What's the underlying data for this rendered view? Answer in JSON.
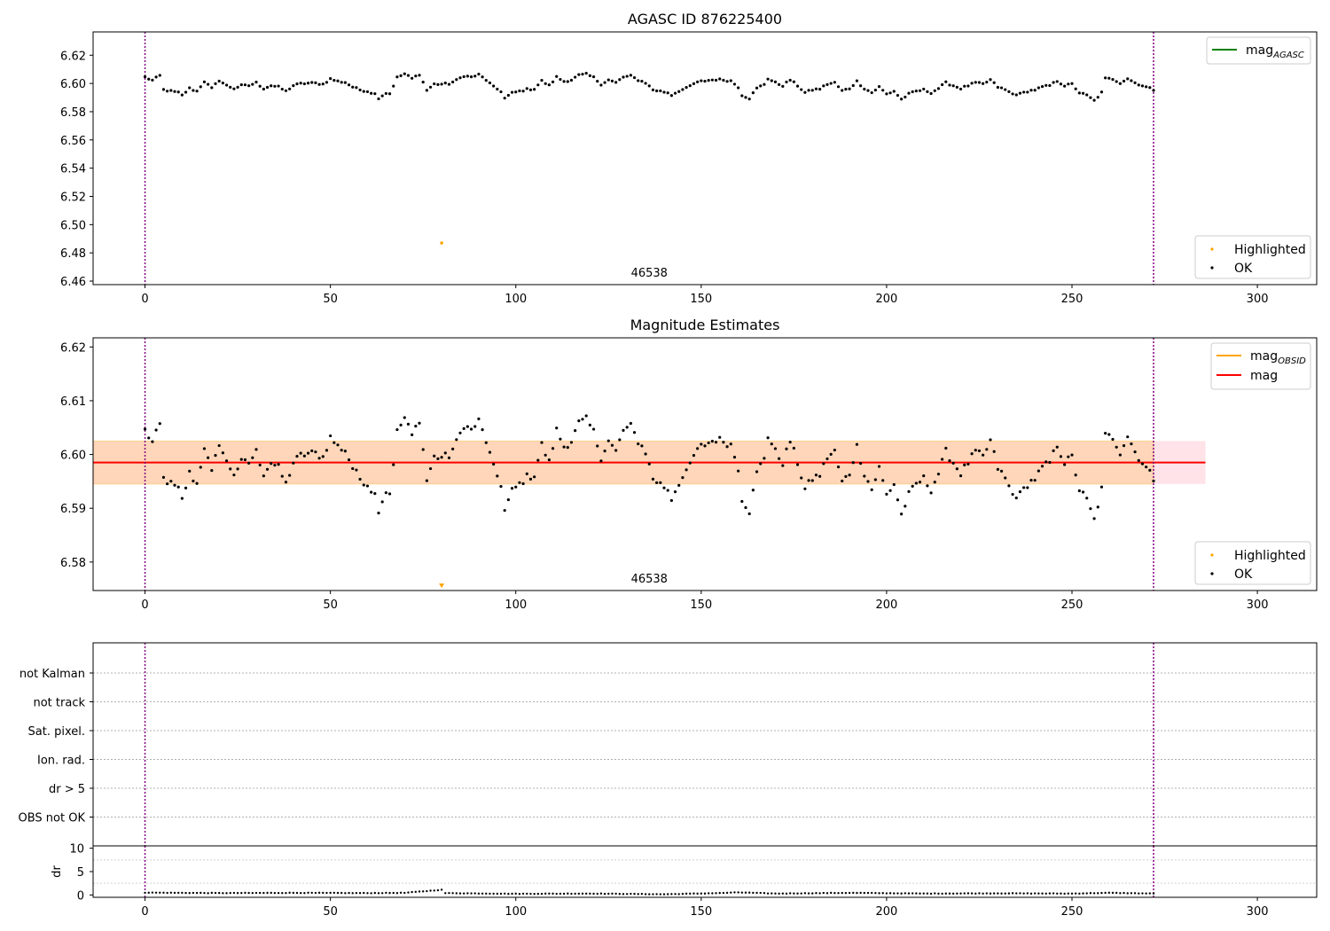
{
  "chart_data": [
    {
      "type": "scatter",
      "title": "AGASC ID 876225400",
      "xlim": [
        -14,
        316
      ],
      "ylim": [
        6.4575,
        6.6365
      ],
      "xticks": [
        0,
        50,
        100,
        150,
        200,
        250,
        300
      ],
      "yticks": [
        6.46,
        6.48,
        6.5,
        6.52,
        6.54,
        6.56,
        6.58,
        6.6,
        6.62
      ],
      "ytick_decimals": 2,
      "vlines": [
        0,
        272
      ],
      "obsid_label": "46538",
      "obsid_x": 136,
      "line_legend": [
        {
          "name": "mag",
          "sub": "AGASC",
          "color": "#008000"
        }
      ],
      "marker_legend": [
        {
          "name": "Highlighted",
          "color": "#ffa500"
        },
        {
          "name": "OK",
          "color": "#000000"
        }
      ],
      "highlighted": [
        [
          80,
          6.487
        ]
      ],
      "series": [
        {
          "name": "OK",
          "mode": "mag"
        }
      ]
    },
    {
      "type": "scatter",
      "title": "Magnitude Estimates",
      "xlim": [
        -14,
        316
      ],
      "ylim": [
        6.5747,
        6.6217
      ],
      "xticks": [
        0,
        50,
        100,
        150,
        200,
        250,
        300
      ],
      "yticks": [
        6.58,
        6.59,
        6.6,
        6.61,
        6.62
      ],
      "ytick_decimals": 2,
      "vlines": [
        0,
        272
      ],
      "obsid_label": "46538",
      "obsid_x": 136,
      "mag": 6.5985,
      "band_low": 6.5945,
      "band_high": 6.6025,
      "band_x": [
        -14,
        286
      ],
      "obsid_band_x": [
        -14,
        272
      ],
      "line_legend": [
        {
          "name": "mag",
          "sub": "OBSID",
          "color": "#ffa500"
        },
        {
          "name": "mag",
          "sub": "",
          "color": "#ff0000"
        }
      ],
      "marker_legend": [
        {
          "name": "Highlighted",
          "color": "#ffa500"
        },
        {
          "name": "OK",
          "color": "#000000"
        }
      ],
      "highlighted_offscale": [
        [
          80,
          6.5755
        ]
      ],
      "series": [
        {
          "name": "OK",
          "mode": "mag"
        }
      ]
    },
    {
      "type": "scatter",
      "xlim": [
        -14,
        316
      ],
      "ylabel": "",
      "flag_labels": [
        "not Kalman",
        "not track",
        "Sat. pixel.",
        "Ion. rad.",
        "dr > 5",
        "OBS not OK"
      ],
      "vlines": [
        0,
        272
      ]
    },
    {
      "type": "scatter",
      "xlim": [
        -14,
        316
      ],
      "ylim": [
        -0.5,
        10.5
      ],
      "yticks": [
        0,
        5,
        10
      ],
      "ylabel": "dr",
      "xticks": [
        0,
        50,
        100,
        150,
        200,
        250,
        300
      ],
      "vlines": [
        0,
        272
      ],
      "series": [
        {
          "name": "dr",
          "mode": "dr"
        }
      ]
    }
  ],
  "samples": {
    "n": 273,
    "mag_knots": [
      [
        0,
        6.6045
      ],
      [
        2,
        6.6022
      ],
      [
        4,
        6.6055
      ],
      [
        5,
        6.5955
      ],
      [
        7,
        6.5945
      ],
      [
        9,
        6.5935
      ],
      [
        10,
        6.5915
      ],
      [
        12,
        6.5965
      ],
      [
        14,
        6.5945
      ],
      [
        16,
        6.6015
      ],
      [
        18,
        6.5965
      ],
      [
        20,
        6.6022
      ],
      [
        22,
        6.5985
      ],
      [
        24,
        6.5965
      ],
      [
        26,
        6.5985
      ],
      [
        28,
        6.5985
      ],
      [
        30,
        6.6005
      ],
      [
        32,
        6.5965
      ],
      [
        34,
        6.5985
      ],
      [
        36,
        6.5975
      ],
      [
        38,
        6.5945
      ],
      [
        40,
        6.5985
      ],
      [
        42,
        6.5998
      ],
      [
        44,
        6.6002
      ],
      [
        46,
        6.6002
      ],
      [
        48,
        6.5995
      ],
      [
        50,
        6.6032
      ],
      [
        52,
        6.6015
      ],
      [
        54,
        6.6008
      ],
      [
        56,
        6.5975
      ],
      [
        58,
        6.5955
      ],
      [
        60,
        6.5945
      ],
      [
        62,
        6.5925
      ],
      [
        63,
        6.5898
      ],
      [
        65,
        6.5932
      ],
      [
        66,
        6.5928
      ],
      [
        68,
        6.6042
      ],
      [
        70,
        6.6068
      ],
      [
        72,
        6.6035
      ],
      [
        74,
        6.6065
      ],
      [
        76,
        6.5952
      ],
      [
        78,
        6.5995
      ],
      [
        80,
        6.5995
      ],
      [
        82,
        6.5998
      ],
      [
        84,
        6.6022
      ],
      [
        86,
        6.6055
      ],
      [
        88,
        6.6045
      ],
      [
        90,
        6.6062
      ],
      [
        92,
        6.6025
      ],
      [
        94,
        6.5975
      ],
      [
        96,
        6.5945
      ],
      [
        97,
        6.5895
      ],
      [
        99,
        6.5932
      ],
      [
        101,
        6.5945
      ],
      [
        103,
        6.5958
      ],
      [
        105,
        6.5962
      ],
      [
        107,
        6.6018
      ],
      [
        109,
        6.5985
      ],
      [
        111,
        6.6045
      ],
      [
        113,
        6.6015
      ],
      [
        115,
        6.6025
      ],
      [
        117,
        6.6058
      ],
      [
        119,
        6.6065
      ],
      [
        121,
        6.6042
      ],
      [
        123,
        6.5995
      ],
      [
        125,
        6.6025
      ],
      [
        127,
        6.6005
      ],
      [
        129,
        6.6045
      ],
      [
        131,
        6.6052
      ],
      [
        133,
        6.6025
      ],
      [
        135,
        6.6005
      ],
      [
        137,
        6.5955
      ],
      [
        139,
        6.5945
      ],
      [
        141,
        6.5935
      ],
      [
        142,
        6.5918
      ],
      [
        144,
        6.5948
      ],
      [
        146,
        6.5965
      ],
      [
        148,
        6.5998
      ],
      [
        150,
        6.6015
      ],
      [
        152,
        6.6022
      ],
      [
        154,
        6.6028
      ],
      [
        156,
        6.6025
      ],
      [
        158,
        6.6018
      ],
      [
        160,
        6.5975
      ],
      [
        161,
        6.5918
      ],
      [
        163,
        6.5895
      ],
      [
        165,
        6.5965
      ],
      [
        167,
        6.5995
      ],
      [
        168,
        6.6035
      ],
      [
        170,
        6.6005
      ],
      [
        172,
        6.5985
      ],
      [
        174,
        6.6025
      ],
      [
        176,
        6.5985
      ],
      [
        178,
        6.5935
      ],
      [
        180,
        6.5955
      ],
      [
        182,
        6.5962
      ],
      [
        184,
        6.5995
      ],
      [
        186,
        6.6005
      ],
      [
        188,
        6.5948
      ],
      [
        190,
        6.5965
      ],
      [
        192,
        6.6015
      ],
      [
        194,
        6.5965
      ],
      [
        196,
        6.5935
      ],
      [
        198,
        6.5975
      ],
      [
        200,
        6.5925
      ],
      [
        202,
        6.5945
      ],
      [
        204,
        6.5888
      ],
      [
        206,
        6.5925
      ],
      [
        208,
        6.5945
      ],
      [
        210,
        6.5955
      ],
      [
        212,
        6.5935
      ],
      [
        214,
        6.5965
      ],
      [
        216,
        6.6005
      ],
      [
        218,
        6.5985
      ],
      [
        220,
        6.5965
      ],
      [
        222,
        6.5985
      ],
      [
        224,
        6.6005
      ],
      [
        226,
        6.5995
      ],
      [
        228,
        6.6025
      ],
      [
        230,
        6.5975
      ],
      [
        232,
        6.5955
      ],
      [
        234,
        6.5925
      ],
      [
        236,
        6.5925
      ],
      [
        238,
        6.5945
      ],
      [
        240,
        6.5955
      ],
      [
        242,
        6.5975
      ],
      [
        244,
        6.5985
      ],
      [
        246,
        6.6018
      ],
      [
        248,
        6.5985
      ],
      [
        250,
        6.5995
      ],
      [
        252,
        6.5935
      ],
      [
        254,
        6.5915
      ],
      [
        256,
        6.5878
      ],
      [
        258,
        6.5935
      ],
      [
        259,
        6.6035
      ],
      [
        261,
        6.6032
      ],
      [
        263,
        6.6005
      ],
      [
        265,
        6.6035
      ],
      [
        267,
        6.6005
      ],
      [
        269,
        6.5985
      ],
      [
        271,
        6.5965
      ],
      [
        272,
        6.5955
      ]
    ],
    "dr_knots": [
      [
        0,
        0.5
      ],
      [
        20,
        0.4
      ],
      [
        40,
        0.45
      ],
      [
        60,
        0.4
      ],
      [
        70,
        0.45
      ],
      [
        80,
        1.1
      ],
      [
        81,
        0.4
      ],
      [
        100,
        0.25
      ],
      [
        120,
        0.3
      ],
      [
        140,
        0.15
      ],
      [
        155,
        0.4
      ],
      [
        160,
        0.55
      ],
      [
        170,
        0.3
      ],
      [
        190,
        0.45
      ],
      [
        210,
        0.3
      ],
      [
        230,
        0.35
      ],
      [
        250,
        0.3
      ],
      [
        260,
        0.45
      ],
      [
        272,
        0.3
      ]
    ]
  }
}
